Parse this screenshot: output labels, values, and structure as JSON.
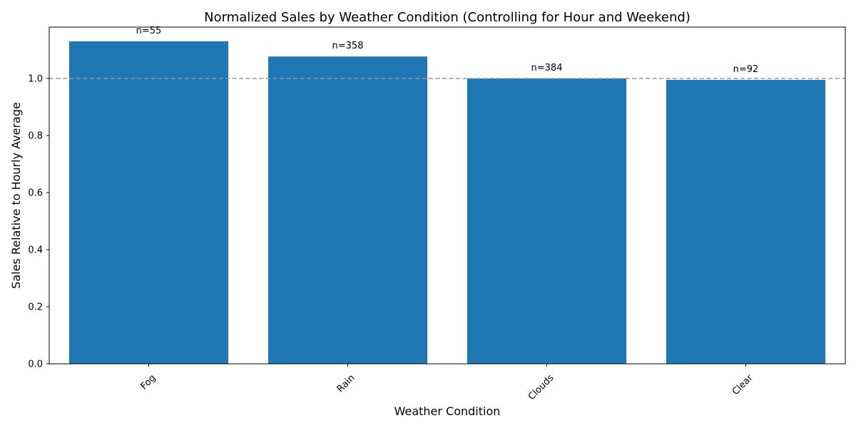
{
  "chart_data": {
    "type": "bar",
    "title": "Normalized Sales by Weather Condition (Controlling for Hour and Weekend)",
    "xlabel": "Weather Condition",
    "ylabel": "Sales Relative to Hourly Average",
    "categories": [
      "Fog",
      "Rain",
      "Clouds",
      "Clear"
    ],
    "values": [
      1.13,
      1.077,
      1.0,
      0.995
    ],
    "bar_labels": [
      "n=55",
      "n=358",
      "n=384",
      "n=92"
    ],
    "ylim": [
      0,
      1.18
    ],
    "yticks": [
      0.0,
      0.2,
      0.4,
      0.6,
      0.8,
      1.0
    ],
    "ytick_labels": [
      "0.0",
      "0.2",
      "0.4",
      "0.6",
      "0.8",
      "1.0"
    ],
    "reference_line": {
      "y": 1.0,
      "style": "dashed",
      "color": "#999999"
    },
    "bar_color": "#1f77b4",
    "grid": false,
    "xtick_rotation": 45
  }
}
